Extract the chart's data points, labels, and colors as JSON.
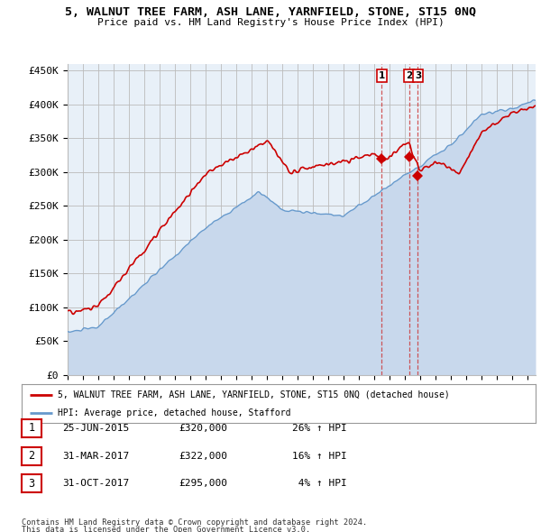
{
  "title": "5, WALNUT TREE FARM, ASH LANE, YARNFIELD, STONE, ST15 0NQ",
  "subtitle": "Price paid vs. HM Land Registry's House Price Index (HPI)",
  "ylim": [
    0,
    460000
  ],
  "yticks": [
    0,
    50000,
    100000,
    150000,
    200000,
    250000,
    300000,
    350000,
    400000,
    450000
  ],
  "ytick_labels": [
    "£0",
    "£50K",
    "£100K",
    "£150K",
    "£200K",
    "£250K",
    "£300K",
    "£350K",
    "£400K",
    "£450K"
  ],
  "background_color": "#ffffff",
  "plot_bg_color": "#e8f0f8",
  "grid_color": "#cccccc",
  "red_color": "#cc0000",
  "blue_color": "#6699cc",
  "blue_fill_color": "#c8d8ec",
  "legend_red_label": "5, WALNUT TREE FARM, ASH LANE, YARNFIELD, STONE, ST15 0NQ (detached house)",
  "legend_blue_label": "HPI: Average price, detached house, Stafford",
  "transactions": [
    {
      "id": 1,
      "date": "25-JUN-2015",
      "price": 320000,
      "pct": "26%",
      "dir": "↑",
      "x_year": 2015.48
    },
    {
      "id": 2,
      "date": "31-MAR-2017",
      "price": 322000,
      "pct": "16%",
      "dir": "↑",
      "x_year": 2017.25
    },
    {
      "id": 3,
      "date": "31-OCT-2017",
      "price": 295000,
      "pct": "4%",
      "dir": "↑",
      "x_year": 2017.83
    }
  ],
  "footer_line1": "Contains HM Land Registry data © Crown copyright and database right 2024.",
  "footer_line2": "This data is licensed under the Open Government Licence v3.0.",
  "xmin": 1995.0,
  "xmax": 2025.5
}
